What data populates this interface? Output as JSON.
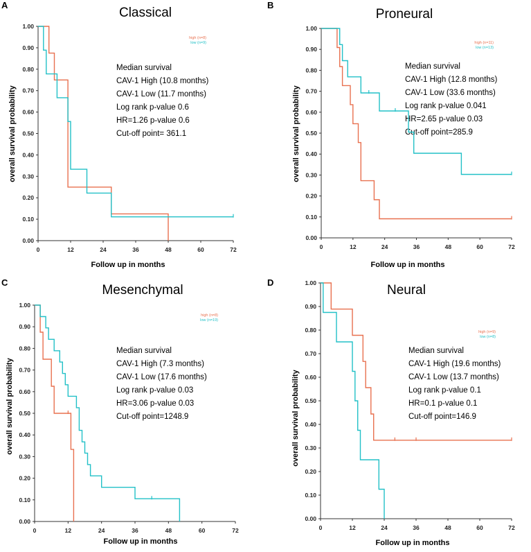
{
  "figure": {
    "colors": {
      "high": "#e8704f",
      "low": "#22c0c7",
      "axis": "#333333"
    }
  },
  "chart_data": [
    {
      "type": "line",
      "panel_label": "A",
      "title": "Classical",
      "xlabel": "Follow up in months",
      "ylabel": "overall survival probability",
      "xlim": [
        0,
        72
      ],
      "ylim": [
        0,
        1
      ],
      "xticks": [
        "0",
        "12",
        "24",
        "36",
        "48",
        "60",
        "72"
      ],
      "yticks": [
        "0.00",
        "0.10",
        "0.20",
        "0.30",
        "0.40",
        "0.50",
        "0.60",
        "0.70",
        "0.80",
        "0.90",
        "1.00"
      ],
      "legend": [
        "high (n=8)",
        "low (n=9)"
      ],
      "annotation": [
        "Median survival",
        "CAV-1 High (10.8 months)",
        "CAV-1 Low (11.7 months)",
        "Log rank p-value 0.6",
        "HR=1.26  p-value 0.6",
        "Cut-off point= 361.1"
      ],
      "series": [
        {
          "name": "high",
          "x": [
            0,
            4,
            4,
            6,
            6,
            11,
            11,
            27,
            27,
            48,
            48
          ],
          "y": [
            1,
            1,
            0.875,
            0.875,
            0.75,
            0.75,
            0.25,
            0.25,
            0.125,
            0.125,
            0
          ],
          "censor": []
        },
        {
          "name": "low",
          "x": [
            0,
            2,
            2,
            3,
            3,
            7,
            7,
            9,
            9,
            11,
            11,
            12,
            12,
            12,
            12,
            18,
            18,
            27,
            27,
            72
          ],
          "y": [
            1,
            1,
            0.889,
            0.889,
            0.778,
            0.778,
            0.667,
            0.667,
            0.667,
            0.667,
            0.556,
            0.556,
            0.444,
            0.444,
            0.333,
            0.333,
            0.222,
            0.222,
            0.111,
            0.111
          ],
          "censor": [
            [
              72,
              0.111
            ]
          ]
        }
      ]
    },
    {
      "type": "line",
      "panel_label": "B",
      "title": "Proneural",
      "xlabel": "Follow up in months",
      "ylabel": "overall survival probability",
      "xlim": [
        0,
        72
      ],
      "ylim": [
        0,
        1
      ],
      "xticks": [
        "0",
        "12",
        "24",
        "36",
        "48",
        "60",
        "72"
      ],
      "yticks": [
        "0.00",
        "0.10",
        "0.20",
        "0.30",
        "0.40",
        "0.50",
        "0.60",
        "0.70",
        "0.80",
        "0.90",
        "1.00"
      ],
      "legend": [
        "high (n=11)",
        "low (n=13)"
      ],
      "annotation": [
        "Median survival",
        "CAV-1 High (12.8 months)",
        "CAV-1 Low (33.6 months)",
        "Log rank p-value 0.041",
        "HR=2.65 p-value 0.03",
        "Cut-off point=285.9"
      ],
      "series": [
        {
          "name": "high",
          "x": [
            0,
            6,
            6,
            7,
            7,
            8,
            8,
            11,
            11,
            12,
            12,
            14,
            14,
            15,
            15,
            20,
            20,
            22,
            22,
            72
          ],
          "y": [
            1,
            1,
            0.909,
            0.909,
            0.818,
            0.818,
            0.727,
            0.727,
            0.636,
            0.636,
            0.545,
            0.545,
            0.455,
            0.455,
            0.273,
            0.273,
            0.182,
            0.182,
            0.091,
            0.091
          ],
          "censor": [
            [
              72,
              0.091
            ]
          ]
        },
        {
          "name": "low",
          "x": [
            0,
            7,
            7,
            8,
            8,
            10,
            10,
            15,
            15,
            22,
            22,
            33,
            33,
            35,
            35,
            53,
            53,
            72
          ],
          "y": [
            1,
            1,
            0.923,
            0.923,
            0.846,
            0.846,
            0.769,
            0.769,
            0.692,
            0.692,
            0.606,
            0.606,
            0.505,
            0.505,
            0.404,
            0.404,
            0.303,
            0.303
          ],
          "censor": [
            [
              18,
              0.692
            ],
            [
              28,
              0.606
            ],
            [
              72,
              0.303
            ]
          ]
        }
      ]
    },
    {
      "type": "line",
      "panel_label": "C",
      "title": "Mesenchymal",
      "xlabel": "Follow up in months",
      "ylabel": "overall survival probability",
      "xlim": [
        0,
        72
      ],
      "ylim": [
        0,
        1
      ],
      "xticks": [
        "0",
        "12",
        "24",
        "36",
        "48",
        "60",
        "72"
      ],
      "yticks": [
        "0.00",
        "0.10",
        "0.20",
        "0.30",
        "0.40",
        "0.50",
        "0.60",
        "0.70",
        "0.80",
        "0.90",
        "1.00"
      ],
      "legend": [
        "high (n=8)",
        "low (n=19)"
      ],
      "annotation": [
        "Median survival",
        "CAV-1 High (7.3 months)",
        "CAV-1 Low (17.6 months)",
        "Log rank p-value 0.03",
        "HR=3.06 p-value 0.03",
        "Cut-off point=1248.9"
      ],
      "series": [
        {
          "name": "high",
          "x": [
            0,
            2,
            2,
            3,
            3,
            6,
            6,
            7,
            7,
            13,
            13,
            14,
            14
          ],
          "y": [
            1,
            1,
            0.875,
            0.875,
            0.75,
            0.75,
            0.625,
            0.625,
            0.5,
            0.5,
            0.333,
            0.333,
            0
          ],
          "censor": [
            [
              12,
              0.5
            ]
          ]
        },
        {
          "name": "low",
          "x": [
            0,
            2,
            2,
            4,
            4,
            5,
            5,
            7,
            7,
            9,
            9,
            10,
            10,
            11,
            11,
            12,
            12,
            15,
            15,
            16,
            16,
            17,
            17,
            18,
            18,
            19,
            19,
            20,
            20,
            24,
            24,
            36,
            36,
            52,
            52
          ],
          "y": [
            1,
            1,
            0.947,
            0.947,
            0.895,
            0.895,
            0.842,
            0.842,
            0.789,
            0.789,
            0.737,
            0.737,
            0.684,
            0.684,
            0.632,
            0.632,
            0.579,
            0.579,
            0.526,
            0.526,
            0.421,
            0.421,
            0.368,
            0.368,
            0.316,
            0.316,
            0.263,
            0.263,
            0.211,
            0.211,
            0.158,
            0.158,
            0.105,
            0.105,
            0
          ],
          "censor": [
            [
              42,
              0.105
            ]
          ]
        }
      ]
    },
    {
      "type": "line",
      "panel_label": "D",
      "title": "Neural",
      "xlabel": "Follow up in months",
      "ylabel": "overall survival probability",
      "xlim": [
        0,
        72
      ],
      "ylim": [
        0,
        1
      ],
      "xticks": [
        "0",
        "12",
        "24",
        "36",
        "48",
        "60",
        "72"
      ],
      "yticks": [
        "0.00",
        "0.10",
        "0.20",
        "0.30",
        "0.40",
        "0.50",
        "0.60",
        "0.70",
        "0.80",
        "0.90",
        "1.00"
      ],
      "legend": [
        "high (n=9)",
        "low (n=8)"
      ],
      "annotation": [
        "Median survival",
        "CAV-1 High (19.6 months)",
        "CAV-1 Low (13.7 months)",
        "Log rank p-value 0.1",
        "HR=0.1 p-value 0.1",
        "Cut-off point=146.9"
      ],
      "series": [
        {
          "name": "high",
          "x": [
            0,
            4,
            4,
            12,
            12,
            16,
            16,
            17,
            17,
            19,
            19,
            20,
            20,
            72
          ],
          "y": [
            1,
            1,
            0.889,
            0.889,
            0.778,
            0.778,
            0.667,
            0.667,
            0.556,
            0.556,
            0.444,
            0.444,
            0.333,
            0.333
          ],
          "censor": [
            [
              28,
              0.333
            ],
            [
              36,
              0.333
            ],
            [
              72,
              0.333
            ]
          ]
        },
        {
          "name": "low",
          "x": [
            0,
            1,
            1,
            6,
            6,
            12,
            12,
            13,
            13,
            14,
            14,
            15,
            15,
            22,
            22,
            24,
            24
          ],
          "y": [
            1,
            1,
            0.875,
            0.875,
            0.75,
            0.75,
            0.625,
            0.625,
            0.5,
            0.5,
            0.375,
            0.375,
            0.25,
            0.25,
            0.125,
            0.125,
            0
          ],
          "censor": []
        }
      ]
    }
  ]
}
